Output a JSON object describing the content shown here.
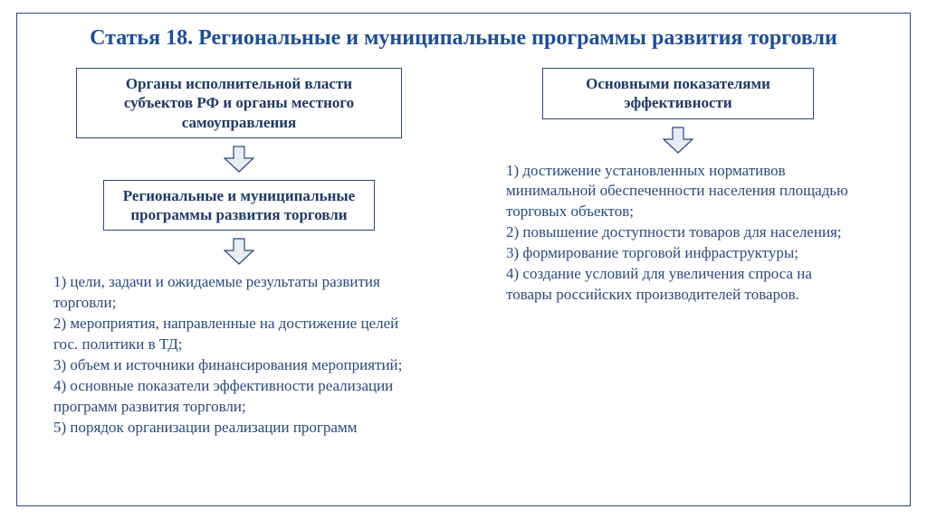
{
  "colors": {
    "frame": "#2a4a7c",
    "title": "#1f4e99",
    "box_border": "#2a4a7c",
    "box_text": "#1f3a66",
    "body_text": "#2a4a7c",
    "arrow_fill": "#e8ecf4",
    "arrow_stroke": "#2a4a7c",
    "background": "#ffffff"
  },
  "fonts": {
    "title_size": 24,
    "box_size": 17,
    "body_size": 17
  },
  "layout": {
    "left_col_width": 410,
    "right_col_width": 380,
    "box1_width": 360,
    "box2_width": 300,
    "box3_width": 300,
    "arrow_w": 34,
    "arrow_h": 30
  },
  "title": "Статья 18. Региональные и муниципальные программы развития торговли",
  "left": {
    "box1": "Органы исполнительной власти субъектов РФ и органы местного самоуправления",
    "box2": "Региональные и муниципальные программы развития торговли",
    "list": "1) цели, задачи и ожидаемые результаты развития торговли;\n2) мероприятия, направленные на достижение целей гос. политики в ТД;\n3) объем и источники финансирования мероприятий;\n4) основные показатели эффективности реализации программ развития торговли;\n5) порядок организации реализации программ"
  },
  "right": {
    "box1": "Основными показателями эффективности",
    "list": "1) достижение установленных нормативов минимальной обеспеченности населения площадью торговых объектов;\n2) повышение доступности товаров для населения;\n3) формирование торговой инфраструктуры;\n4) создание условий для увеличения спроса на товары российских производителей товаров."
  }
}
